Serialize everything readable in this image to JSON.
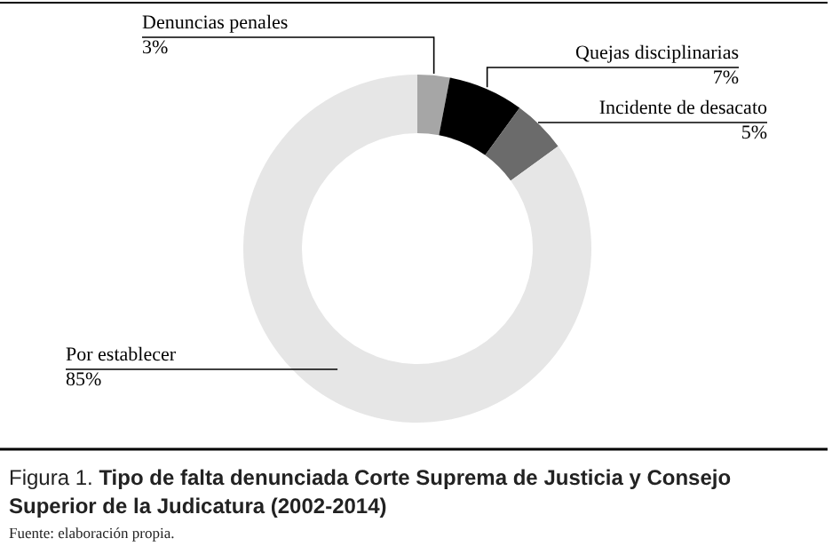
{
  "chart_data": {
    "type": "donut",
    "title": "Figura 1. Tipo de falta denunciada Corte Suprema de Justicia y Consejo Superior de la Judicatura (2002-2014)",
    "categories": [
      "Denuncias penales",
      "Quejas disciplinarias",
      "Incidente de desacato",
      "Por establecer"
    ],
    "values": [
      3,
      7,
      5,
      85
    ],
    "value_labels": [
      "3%",
      "7%",
      "5%",
      "85%"
    ],
    "colors": [
      "#a6a6a6",
      "#000000",
      "#6b6b6b",
      "#e6e6e6"
    ],
    "annotations": [
      "Fuente: elaboración propia."
    ]
  }
}
